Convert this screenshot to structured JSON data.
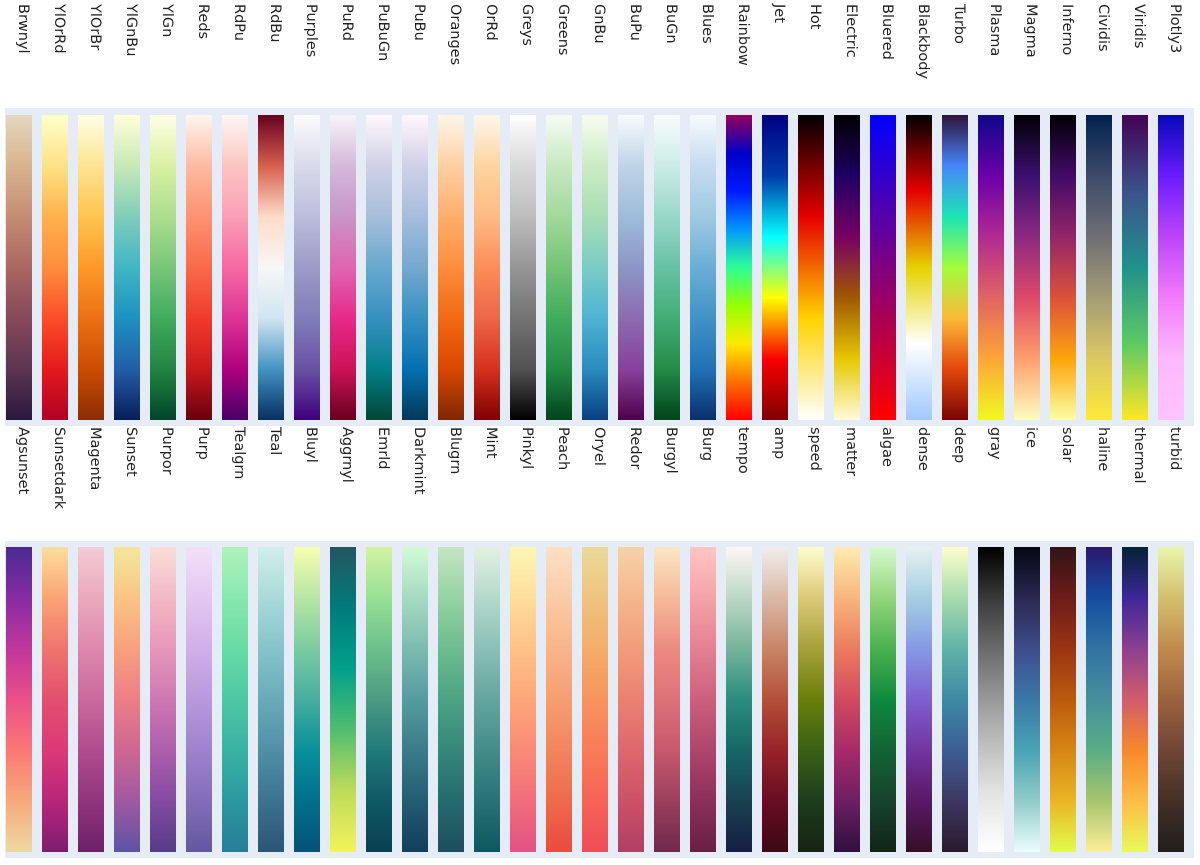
{
  "chart_data": {
    "type": "heatmap",
    "title": "",
    "rows": [
      [
        {
          "name": "Brwnyl",
          "stops": [
            "#e4d7c1",
            "#d8b48e",
            "#c58d74",
            "#ab6661",
            "#86495a",
            "#5d3550",
            "#2a1840"
          ]
        },
        {
          "name": "YlOrRd",
          "stops": [
            "#ffffcc",
            "#fee187",
            "#feb24c",
            "#fd8d3c",
            "#fc4e2a",
            "#e31a1c",
            "#b10026"
          ]
        },
        {
          "name": "YlOrBr",
          "stops": [
            "#ffffe5",
            "#fee391",
            "#fec44f",
            "#fe9929",
            "#ec7014",
            "#cc4c02",
            "#8c2d04"
          ]
        },
        {
          "name": "YlGnBu",
          "stops": [
            "#ffffd9",
            "#c7e9b4",
            "#7fcdbb",
            "#41b6c4",
            "#1d91c0",
            "#225ea8",
            "#081d58"
          ]
        },
        {
          "name": "YlGn",
          "stops": [
            "#ffffe5",
            "#d9f0a3",
            "#addd8e",
            "#78c679",
            "#41ab5d",
            "#238443",
            "#004529"
          ]
        },
        {
          "name": "Reds",
          "stops": [
            "#fff5f0",
            "#fcbba1",
            "#fc9272",
            "#fb6a4a",
            "#ef3b2c",
            "#cb181d",
            "#67000d"
          ]
        },
        {
          "name": "RdPu",
          "stops": [
            "#fff7f3",
            "#fcc5c0",
            "#fa9fb5",
            "#f768a1",
            "#dd3497",
            "#ae017e",
            "#49006a"
          ]
        },
        {
          "name": "RdBu",
          "stops": [
            "#67001f",
            "#d6604d",
            "#fddbc7",
            "#f7f7f7",
            "#d1e5f0",
            "#4393c3",
            "#053061"
          ]
        },
        {
          "name": "Purples",
          "stops": [
            "#fcfbfd",
            "#dadaeb",
            "#bcbddc",
            "#9e9ac8",
            "#807dba",
            "#6a51a3",
            "#3f007d"
          ]
        },
        {
          "name": "PuRd",
          "stops": [
            "#f7f4f9",
            "#d4b9da",
            "#c994c7",
            "#df65b0",
            "#e7298a",
            "#ce1256",
            "#67001f"
          ]
        },
        {
          "name": "PuBuGn",
          "stops": [
            "#fff7fb",
            "#d0d1e6",
            "#a6bddb",
            "#67a9cf",
            "#3690c0",
            "#02818a",
            "#014636"
          ]
        },
        {
          "name": "PuBu",
          "stops": [
            "#fff7fb",
            "#d0d1e6",
            "#a6bddb",
            "#74a9cf",
            "#3690c0",
            "#0570b0",
            "#023858"
          ]
        },
        {
          "name": "Oranges",
          "stops": [
            "#fff5eb",
            "#fdd0a2",
            "#fdae6b",
            "#fd8d3c",
            "#f16913",
            "#d94801",
            "#7f2704"
          ]
        },
        {
          "name": "OrRd",
          "stops": [
            "#fff7ec",
            "#fdd49e",
            "#fdbb84",
            "#fc8d59",
            "#ef6548",
            "#d7301f",
            "#7f0000"
          ]
        },
        {
          "name": "Greys",
          "stops": [
            "#ffffff",
            "#d9d9d9",
            "#bdbdbd",
            "#969696",
            "#737373",
            "#525252",
            "#000000"
          ]
        },
        {
          "name": "Greens",
          "stops": [
            "#f7fcf5",
            "#c7e9c0",
            "#a1d99b",
            "#74c476",
            "#41ab5d",
            "#238b45",
            "#00441b"
          ]
        },
        {
          "name": "GnBu",
          "stops": [
            "#f7fcf0",
            "#ccebc5",
            "#a8ddb5",
            "#7bccc4",
            "#4eb3d3",
            "#2b8cbe",
            "#084081"
          ]
        },
        {
          "name": "BuPu",
          "stops": [
            "#f7fcfd",
            "#bfd3e6",
            "#9ebcda",
            "#8c96c6",
            "#8c6bb1",
            "#88419d",
            "#4d004b"
          ]
        },
        {
          "name": "BuGn",
          "stops": [
            "#f7fcfd",
            "#ccece6",
            "#99d8c9",
            "#66c2a4",
            "#41ae76",
            "#238b45",
            "#00441b"
          ]
        },
        {
          "name": "Blues",
          "stops": [
            "#f7fbff",
            "#c6dbef",
            "#9ecae1",
            "#6baed6",
            "#4292c6",
            "#2171b5",
            "#08306b"
          ]
        },
        {
          "name": "Rainbow",
          "stops": [
            "#96005a",
            "#0000c8",
            "#0019ff",
            "#0098ff",
            "#2cff96",
            "#97ff00",
            "#ffea00",
            "#ff6f00",
            "#ff0000"
          ]
        },
        {
          "name": "Jet",
          "stops": [
            "#000083",
            "#003caa",
            "#05ffff",
            "#ffff00",
            "#fa0000",
            "#800000"
          ]
        },
        {
          "name": "Hot",
          "stops": [
            "#000000",
            "#e60000",
            "#ffd200",
            "#ffffff"
          ]
        },
        {
          "name": "Electric",
          "stops": [
            "#000000",
            "#1e0064",
            "#780064",
            "#a05a00",
            "#e6c800",
            "#fffadc"
          ]
        },
        {
          "name": "Bluered",
          "stops": [
            "#0000ff",
            "#ff0000"
          ]
        },
        {
          "name": "Blackbody",
          "stops": [
            "#000000",
            "#e60000",
            "#e6d200",
            "#ffffff",
            "#a0c8ff"
          ]
        },
        {
          "name": "Turbo",
          "stops": [
            "#30123b",
            "#4686fb",
            "#1be5b5",
            "#a4fc3c",
            "#fbb938",
            "#e4460a",
            "#7a0403"
          ]
        },
        {
          "name": "Plasma",
          "stops": [
            "#0d0887",
            "#6a00a8",
            "#b12a90",
            "#e16462",
            "#fca636",
            "#f0f921"
          ]
        },
        {
          "name": "Magma",
          "stops": [
            "#000004",
            "#3b0f70",
            "#8c2981",
            "#de4968",
            "#fe9f6d",
            "#fcfdbf"
          ]
        },
        {
          "name": "Inferno",
          "stops": [
            "#000004",
            "#420a68",
            "#932667",
            "#dd513a",
            "#fca50a",
            "#fcffa4"
          ]
        },
        {
          "name": "Cividis",
          "stops": [
            "#00224e",
            "#3e4a6b",
            "#6f6f73",
            "#a59c74",
            "#dcc962",
            "#fee838"
          ]
        },
        {
          "name": "Viridis",
          "stops": [
            "#440154",
            "#3b528b",
            "#21918c",
            "#5ec962",
            "#fde725"
          ]
        },
        {
          "name": "Plotly3",
          "stops": [
            "#0508b8",
            "#6a1cff",
            "#bd45f9",
            "#f27bfa",
            "#fcb9fd",
            "#fec3fe"
          ]
        }
      ],
      [
        {
          "name": "Agsunset",
          "stops": [
            "#4b2991",
            "#872ca2",
            "#c0369d",
            "#ea4f88",
            "#fa7876",
            "#f6a97a",
            "#edd9a3"
          ]
        },
        {
          "name": "Sunsetdark",
          "stops": [
            "#fcde9c",
            "#faa476",
            "#f0746e",
            "#e34f6f",
            "#dc3977",
            "#b9257a",
            "#7c1d6f"
          ]
        },
        {
          "name": "Magenta",
          "stops": [
            "#f3cbd3",
            "#eaa9bd",
            "#dd88ac",
            "#ca699d",
            "#b14d8e",
            "#91357d",
            "#6c2167"
          ]
        },
        {
          "name": "Sunset",
          "stops": [
            "#f3e79b",
            "#fac484",
            "#f8a07e",
            "#eb7f86",
            "#ce6693",
            "#a059a0",
            "#5c53a5"
          ]
        },
        {
          "name": "Purpor",
          "stops": [
            "#f9ddda",
            "#f2b9c4",
            "#e597b9",
            "#ce78b3",
            "#ad5fad",
            "#834ba0",
            "#573b88"
          ]
        },
        {
          "name": "Purp",
          "stops": [
            "#f3e0f7",
            "#e4c7f1",
            "#d1afe8",
            "#b998dd",
            "#9f82ce",
            "#826dba",
            "#63589f"
          ]
        },
        {
          "name": "Tealgrn",
          "stops": [
            "#b0f2bc",
            "#89e8ac",
            "#67dba5",
            "#4cc8a3",
            "#38b2a3",
            "#2c98a0",
            "#257d98"
          ]
        },
        {
          "name": "Teal",
          "stops": [
            "#d1eeea",
            "#a8dbd9",
            "#85c4c9",
            "#68abb8",
            "#4f90a6",
            "#3b738f",
            "#2a5674"
          ]
        },
        {
          "name": "Bluyl",
          "stops": [
            "#f7feae",
            "#b7e6a5",
            "#7ccba2",
            "#46aea0",
            "#089099",
            "#00718b",
            "#045275"
          ]
        },
        {
          "name": "Aggrnyl",
          "stops": [
            "#24565e",
            "#017b7c",
            "#02a08a",
            "#52bd6f",
            "#bedb5b",
            "#f2f45a"
          ]
        },
        {
          "name": "Emrld",
          "stops": [
            "#d3f2a3",
            "#97e196",
            "#6cc08b",
            "#4c9b82",
            "#217a79",
            "#105965",
            "#074050"
          ]
        },
        {
          "name": "Darkmint",
          "stops": [
            "#d2fbd4",
            "#a5dbc2",
            "#7bbcb0",
            "#559c9e",
            "#3a7c89",
            "#235d72",
            "#123f5a"
          ]
        },
        {
          "name": "Blugrn",
          "stops": [
            "#c4e6c3",
            "#96d2a4",
            "#6dbc90",
            "#4da284",
            "#36877a",
            "#266b6e",
            "#1d4f60"
          ]
        },
        {
          "name": "Mint",
          "stops": [
            "#e4f1e1",
            "#b4d9cc",
            "#89c0b6",
            "#63a6a0",
            "#448c8a",
            "#287274",
            "#0d585f"
          ]
        },
        {
          "name": "Pinkyl",
          "stops": [
            "#fef6b5",
            "#ffdd9a",
            "#ffc285",
            "#ffa679",
            "#fa8a76",
            "#f16d7a",
            "#e15383"
          ]
        },
        {
          "name": "Peach",
          "stops": [
            "#fde0c5",
            "#facba6",
            "#f8b58b",
            "#f59e72",
            "#f2855d",
            "#ef6a4c",
            "#eb4a40"
          ]
        },
        {
          "name": "Oryel",
          "stops": [
            "#ecda9a",
            "#efc47e",
            "#f3ad6a",
            "#f7945d",
            "#f97b57",
            "#f66356",
            "#ee4d5a"
          ]
        },
        {
          "name": "Redor",
          "stops": [
            "#f6d2a9",
            "#f5b78e",
            "#f19c7c",
            "#ea8171",
            "#dd686c",
            "#ca5268",
            "#b13f64"
          ]
        },
        {
          "name": "Burgyl",
          "stops": [
            "#fbe6c5",
            "#f5ba98",
            "#ee8a82",
            "#dc7176",
            "#c8586c",
            "#9c3f5d",
            "#70284a"
          ]
        },
        {
          "name": "Burg",
          "stops": [
            "#ffc6c4",
            "#f4a3a8",
            "#e38191",
            "#cc607d",
            "#ad466c",
            "#8b3058",
            "#672044"
          ]
        },
        {
          "name": "tempo",
          "stops": [
            "#fff6f4",
            "#bdd8c4",
            "#75b49a",
            "#2a8d7f",
            "#186765",
            "#194250",
            "#151d44"
          ]
        },
        {
          "name": "amp",
          "stops": [
            "#f1eded",
            "#dab9a7",
            "#c88566",
            "#b4503a",
            "#972428",
            "#680d23",
            "#3c0912"
          ]
        },
        {
          "name": "speed",
          "stops": [
            "#fffdcd",
            "#ddc979",
            "#a6a03a",
            "#6a7f09",
            "#3a6016",
            "#1d3d1c",
            "#172313"
          ]
        },
        {
          "name": "matter",
          "stops": [
            "#fdedb0",
            "#f8b57c",
            "#ec7c5f",
            "#d24a5e",
            "#a62b68",
            "#6e1f63",
            "#2f0f3d"
          ]
        },
        {
          "name": "algae",
          "stops": [
            "#d7f9d0",
            "#93d67c",
            "#4bb04f",
            "#0e8a3c",
            "#136337",
            "#16432b",
            "#122414"
          ]
        },
        {
          "name": "dense",
          "stops": [
            "#e6f1f1",
            "#a5cfe0",
            "#8599e4",
            "#7e5fcf",
            "#72359f",
            "#5a1867",
            "#360e24"
          ]
        },
        {
          "name": "deep",
          "stops": [
            "#fdfecc",
            "#a8dcab",
            "#60b3a8",
            "#3d8aa5",
            "#3c5e94",
            "#3e3763",
            "#281a2c"
          ]
        },
        {
          "name": "gray",
          "stops": [
            "#000000",
            "#444444",
            "#7d7d7d",
            "#b3b3b3",
            "#e2e2e2",
            "#ffffff"
          ]
        },
        {
          "name": "ice",
          "stops": [
            "#040613",
            "#2b2851",
            "#3e4c8c",
            "#3b78a6",
            "#49a3b6",
            "#91ccc9",
            "#eafdfd"
          ]
        },
        {
          "name": "solar",
          "stops": [
            "#331418",
            "#6d1c18",
            "#9a3413",
            "#bb5a0f",
            "#d68613",
            "#e9b524",
            "#e0fd4a"
          ]
        },
        {
          "name": "haline",
          "stops": [
            "#2a186c",
            "#144da1",
            "#3272a2",
            "#468f9e",
            "#5aad84",
            "#a7c56c",
            "#fdef9a"
          ]
        },
        {
          "name": "thermal",
          "stops": [
            "#032333",
            "#3d2796",
            "#8b4091",
            "#d05d6b",
            "#f8882a",
            "#fcbd44",
            "#e8fa5b"
          ]
        },
        {
          "name": "turbid",
          "stops": [
            "#e9f6ab",
            "#d4bf6e",
            "#c08b4c",
            "#9c623e",
            "#704636",
            "#442f27",
            "#221e1b"
          ]
        }
      ]
    ]
  }
}
